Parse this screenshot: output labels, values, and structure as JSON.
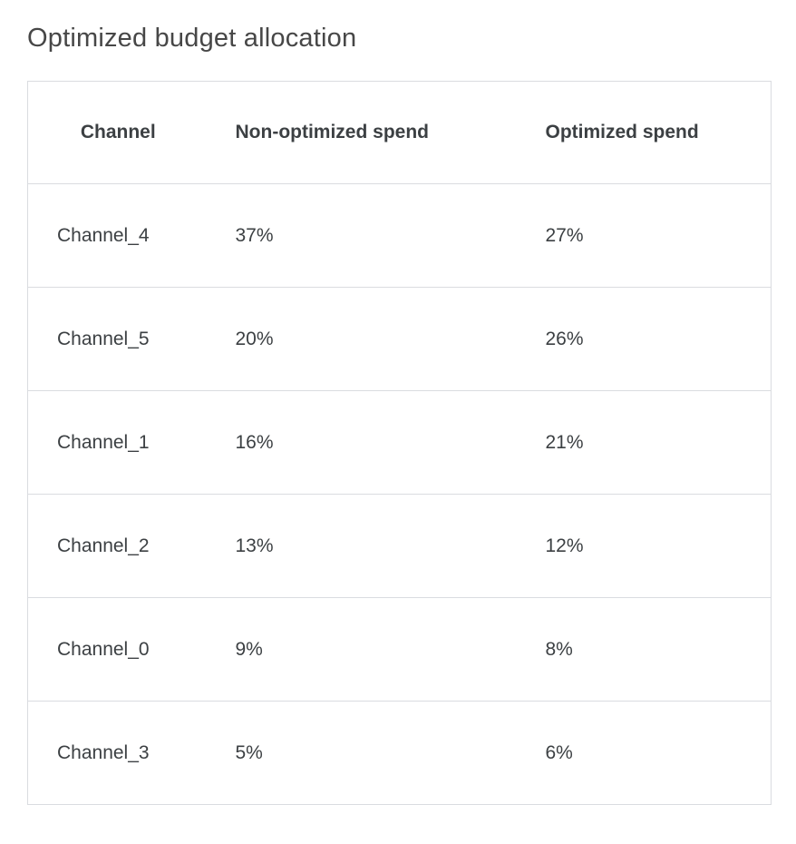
{
  "page": {
    "title": "Optimized budget allocation"
  },
  "table": {
    "columns": [
      "Channel",
      "Non-optimized spend",
      "Optimized spend"
    ],
    "rows": [
      [
        "Channel_4",
        "37%",
        "27%"
      ],
      [
        "Channel_5",
        "20%",
        "26%"
      ],
      [
        "Channel_1",
        "16%",
        "21%"
      ],
      [
        "Channel_2",
        "13%",
        "12%"
      ],
      [
        "Channel_0",
        "9%",
        "8%"
      ],
      [
        "Channel_3",
        "5%",
        "6%"
      ]
    ]
  },
  "colors": {
    "title_text": "#474747",
    "table_text": "#3c4043",
    "table_border": "#dadce0",
    "background": "#ffffff"
  },
  "chart_data": {
    "type": "table",
    "title": "Optimized budget allocation",
    "columns": [
      "Channel",
      "Non-optimized spend",
      "Optimized spend"
    ],
    "categories": [
      "Channel_4",
      "Channel_5",
      "Channel_1",
      "Channel_2",
      "Channel_0",
      "Channel_3"
    ],
    "series": [
      {
        "name": "Non-optimized spend",
        "values": [
          37,
          20,
          16,
          13,
          9,
          5
        ],
        "unit": "%"
      },
      {
        "name": "Optimized spend",
        "values": [
          27,
          26,
          21,
          12,
          8,
          6
        ],
        "unit": "%"
      }
    ]
  }
}
